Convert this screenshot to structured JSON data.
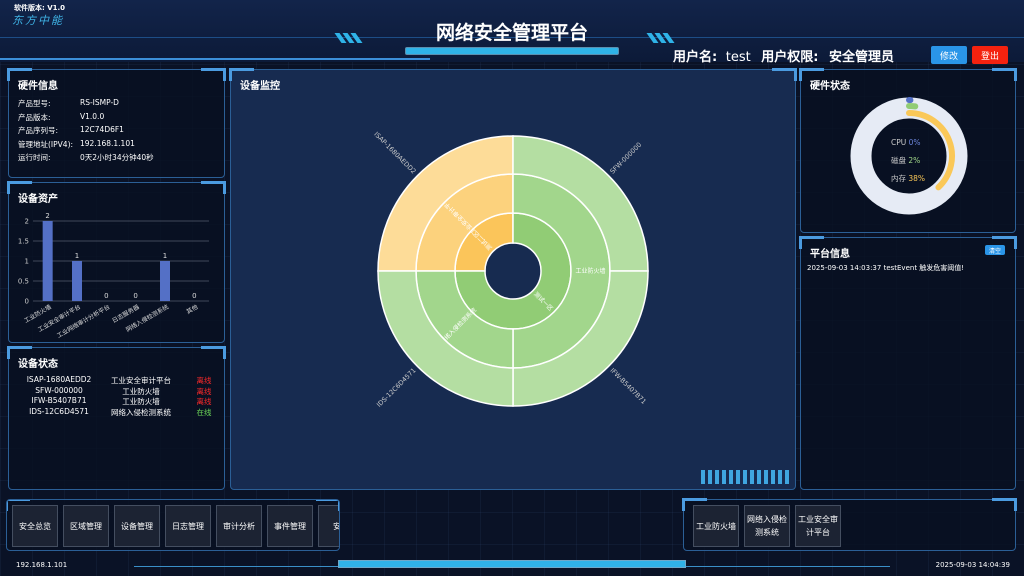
{
  "header": {
    "version": "软件版本: V1.0",
    "logo": "东方中能",
    "title": "网络安全管理平台",
    "user_label": "用户名:",
    "username": "test",
    "role_label": "用户权限:",
    "role": "安全管理员",
    "edit_button": "修改",
    "logout_button": "登出"
  },
  "hardware_info": {
    "title": "硬件信息",
    "items": [
      {
        "k": "产品型号:",
        "v": "RS-ISMP-D"
      },
      {
        "k": "产品版本:",
        "v": "V1.0.0"
      },
      {
        "k": "产品序列号:",
        "v": "12C74D6F1"
      },
      {
        "k": "管理地址(IPV4):",
        "v": "192.168.1.101"
      },
      {
        "k": "运行时间:",
        "v": "0天2小时34分钟40秒"
      }
    ]
  },
  "assets": {
    "title": "设备资产"
  },
  "device_status": {
    "title": "设备状态",
    "rows": [
      {
        "id": "ISAP-1680AEDD2",
        "type": "工业安全审计平台",
        "status": "离线"
      },
      {
        "id": "SFW-000000",
        "type": "工业防火墙",
        "status": "离线"
      },
      {
        "id": "IFW-B5407B71",
        "type": "工业防火墙",
        "status": "离线"
      },
      {
        "id": "IDS-12C6D4571",
        "type": "网络入侵检测系统",
        "status": "在线"
      }
    ],
    "colors": {
      "离线": "#ff2a2a",
      "在线": "#6fdc5a"
    }
  },
  "monitor": {
    "title": "设备监控"
  },
  "hw_status": {
    "title": "硬件状态",
    "cpu_label": "CPU",
    "cpu": "0%",
    "disk_label": "磁盘",
    "disk": "2%",
    "mem_label": "内存",
    "mem": "38%"
  },
  "platform": {
    "title": "平台信息",
    "clear_button": "清空",
    "messages": [
      "2025-09-03 14:03:37 testEvent 触发危害阈值!"
    ]
  },
  "nav_left": [
    "安全总览",
    "区域管理",
    "设备管理",
    "日志管理",
    "审计分析",
    "事件管理",
    "安全"
  ],
  "nav_right": [
    "工业防火墙",
    "网络入侵检测系统",
    "工业安全审计平台"
  ],
  "footer": {
    "ip": "192.168.1.101",
    "time": "2025-09-03 14:04:39"
  },
  "chart_data": [
    {
      "type": "bar",
      "title": "",
      "categories": [
        "工业防火墙",
        "工业安全审计平台",
        "工业网络审计分析平台",
        "日志服务器",
        "网络入侵检测系统",
        "其他"
      ],
      "values": [
        2,
        1,
        0,
        0,
        1,
        0
      ],
      "ylim": [
        0,
        2
      ],
      "yticks": [
        "0",
        "0.5",
        "1",
        "1.5",
        "2"
      ],
      "grid": true,
      "color": "#5470c6"
    },
    {
      "type": "sunburst",
      "rings": [
        [
          {
            "name": "测试二区",
            "value": 1,
            "color": "#fbc55a"
          },
          {
            "name": "测试一区",
            "value": 3,
            "color": "#91cc75"
          }
        ],
        [
          {
            "name": "工业安全审计平台",
            "value": 1,
            "color": "#fcd27d"
          },
          {
            "name": "工业防火墙",
            "value": 2,
            "color": "#a2d68c"
          },
          {
            "name": "网络入侵检测系统",
            "value": 1,
            "color": "#a2d68c"
          }
        ],
        [
          {
            "name": "ISAP-1680AEDD2",
            "value": 1,
            "color": "#fddc98"
          },
          {
            "name": "SFW-000000",
            "value": 1,
            "color": "#b4dea2"
          },
          {
            "name": "IFW-B5407B71",
            "value": 1,
            "color": "#b4dea2"
          },
          {
            "name": "IDS-12C6D4571",
            "value": 1,
            "color": "#b4dea2"
          }
        ]
      ]
    },
    {
      "type": "radial-bar",
      "series": [
        {
          "name": "CPU",
          "value": 0,
          "color": "#5470c6"
        },
        {
          "name": "磁盘",
          "value": 2,
          "color": "#91cc75"
        },
        {
          "name": "内存",
          "value": 38,
          "color": "#fac858"
        }
      ],
      "ylim": [
        0,
        100
      ]
    }
  ]
}
